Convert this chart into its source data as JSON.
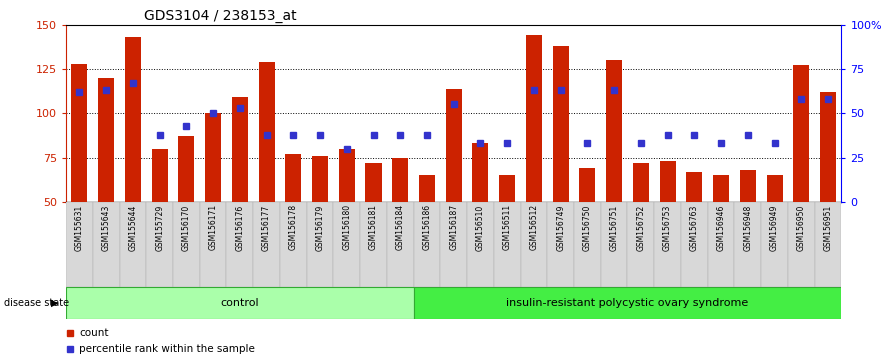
{
  "title": "GDS3104 / 238153_at",
  "samples": [
    "GSM155631",
    "GSM155643",
    "GSM155644",
    "GSM155729",
    "GSM156170",
    "GSM156171",
    "GSM156176",
    "GSM156177",
    "GSM156178",
    "GSM156179",
    "GSM156180",
    "GSM156181",
    "GSM156184",
    "GSM156186",
    "GSM156187",
    "GSM156510",
    "GSM156511",
    "GSM156512",
    "GSM156749",
    "GSM156750",
    "GSM156751",
    "GSM156752",
    "GSM156753",
    "GSM156763",
    "GSM156946",
    "GSM156948",
    "GSM156949",
    "GSM156950",
    "GSM156951"
  ],
  "bar_values": [
    128,
    120,
    143,
    80,
    87,
    100,
    109,
    129,
    77,
    76,
    80,
    72,
    75,
    65,
    114,
    83,
    65,
    144,
    138,
    69,
    130,
    72,
    73,
    67,
    65,
    68,
    65,
    127,
    112
  ],
  "dot_values": [
    112,
    113,
    117,
    88,
    93,
    100,
    103,
    88,
    88,
    88,
    80,
    88,
    88,
    88,
    105,
    83,
    83,
    113,
    113,
    83,
    113,
    83,
    88,
    88,
    83,
    88,
    83,
    108,
    108
  ],
  "control_count": 13,
  "ylim": [
    50,
    150
  ],
  "yticks": [
    50,
    75,
    100,
    125,
    150
  ],
  "ytick_labels_left": [
    "50",
    "75",
    "100",
    "125",
    "150"
  ],
  "ytick_labels_right": [
    "0",
    "25",
    "50",
    "75",
    "100%"
  ],
  "bar_color": "#cc2200",
  "dot_color": "#3333cc",
  "control_label": "control",
  "disease_label": "insulin-resistant polycystic ovary syndrome",
  "disease_state_label": "disease state",
  "legend_count": "count",
  "legend_pct": "percentile rank within the sample",
  "bar_bottom": 50,
  "title_fontsize": 10,
  "axis_fontsize": 8,
  "sample_fontsize": 5.5,
  "legend_fontsize": 7.5,
  "disease_fontsize": 8
}
